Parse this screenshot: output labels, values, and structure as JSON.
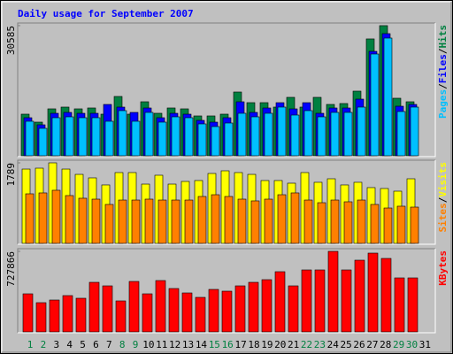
{
  "title": "Daily usage for September 2007",
  "legend_separator": "/",
  "chart_data": [
    {
      "type": "bar",
      "ylim": [
        0,
        31200
      ],
      "yticks": [
        30585
      ],
      "series": [
        {
          "name": "Hits",
          "color": "#008040",
          "values": [
            9779,
            7906,
            11027,
            11443,
            11027,
            11235,
            9779,
            13940,
            9779,
            12692,
            9987,
            11235,
            11027,
            9363,
            9363,
            9779,
            14980,
            12484,
            12484,
            11443,
            13732,
            11443,
            13732,
            12067,
            12276,
            15188,
            27464,
            30585,
            13524,
            12692,
            null
          ]
        },
        {
          "name": "Files",
          "color": "#0000ff",
          "values": [
            8944,
            7280,
            9984,
            10192,
            9984,
            9984,
            12064,
            11440,
            10192,
            11232,
            8944,
            9984,
            9776,
            8320,
            7904,
            8944,
            12688,
            10192,
            11232,
            12480,
            11024,
            12480,
            9984,
            11232,
            11232,
            13312,
            24544,
            28704,
            11648,
            12064,
            null
          ]
        },
        {
          "name": "Pages",
          "color": "#00c0ff",
          "values": [
            8112,
            6448,
            8944,
            9152,
            8944,
            8944,
            8112,
            10608,
            8112,
            10192,
            7904,
            9152,
            8944,
            7488,
            6864,
            7696,
            9984,
            9152,
            9984,
            11440,
            9568,
            10608,
            9152,
            10192,
            10192,
            11440,
            23920,
            27664,
            10400,
            11440,
            null
          ]
        }
      ]
    },
    {
      "type": "bar",
      "ylim": [
        0,
        1848
      ],
      "yticks": [
        1789
      ],
      "series": [
        {
          "name": "Visits",
          "color": "#ffff00",
          "values": [
            1651,
            1671,
            1789,
            1651,
            1533,
            1455,
            1298,
            1573,
            1573,
            1317,
            1514,
            1317,
            1376,
            1396,
            1553,
            1612,
            1573,
            1533,
            1396,
            1396,
            1337,
            1573,
            1357,
            1435,
            1298,
            1357,
            1239,
            1219,
            1160,
            1435,
            null
          ]
        },
        {
          "name": "Sites",
          "color": "#ff8000",
          "values": [
            1101,
            1121,
            1180,
            1062,
            1003,
            983,
            865,
            963,
            963,
            983,
            963,
            963,
            963,
            1042,
            1081,
            1042,
            983,
            944,
            983,
            1081,
            1121,
            963,
            904,
            963,
            924,
            963,
            865,
            786,
            826,
            806,
            null
          ]
        }
      ]
    },
    {
      "type": "bar",
      "ylim": [
        0,
        752000
      ],
      "yticks": [
        727866
      ],
      "categories": [
        "1",
        "2",
        "3",
        "4",
        "5",
        "6",
        "7",
        "8",
        "9",
        "10",
        "11",
        "12",
        "13",
        "14",
        "15",
        "16",
        "17",
        "18",
        "19",
        "20",
        "21",
        "22",
        "23",
        "24",
        "25",
        "26",
        "27",
        "28",
        "29",
        "30",
        "31"
      ],
      "category_colors": [
        "#008040",
        "#008040",
        "#000000",
        "#000000",
        "#000000",
        "#000000",
        "#000000",
        "#008040",
        "#008040",
        "#000000",
        "#000000",
        "#000000",
        "#000000",
        "#000000",
        "#008040",
        "#008040",
        "#000000",
        "#000000",
        "#000000",
        "#000000",
        "#000000",
        "#008040",
        "#008040",
        "#000000",
        "#000000",
        "#000000",
        "#000000",
        "#000000",
        "#008040",
        "#008040",
        "#000000"
      ],
      "series": [
        {
          "name": "KBytes",
          "color": "#ff0000",
          "values": [
            344000,
            264000,
            288000,
            328000,
            304000,
            448000,
            416000,
            280000,
            456000,
            344000,
            464000,
            392000,
            352000,
            312000,
            384000,
            368000,
            416000,
            448000,
            472000,
            544000,
            416000,
            560000,
            560000,
            727866,
            560000,
            648000,
            712000,
            664000,
            488000,
            488000,
            null
          ]
        }
      ]
    }
  ]
}
